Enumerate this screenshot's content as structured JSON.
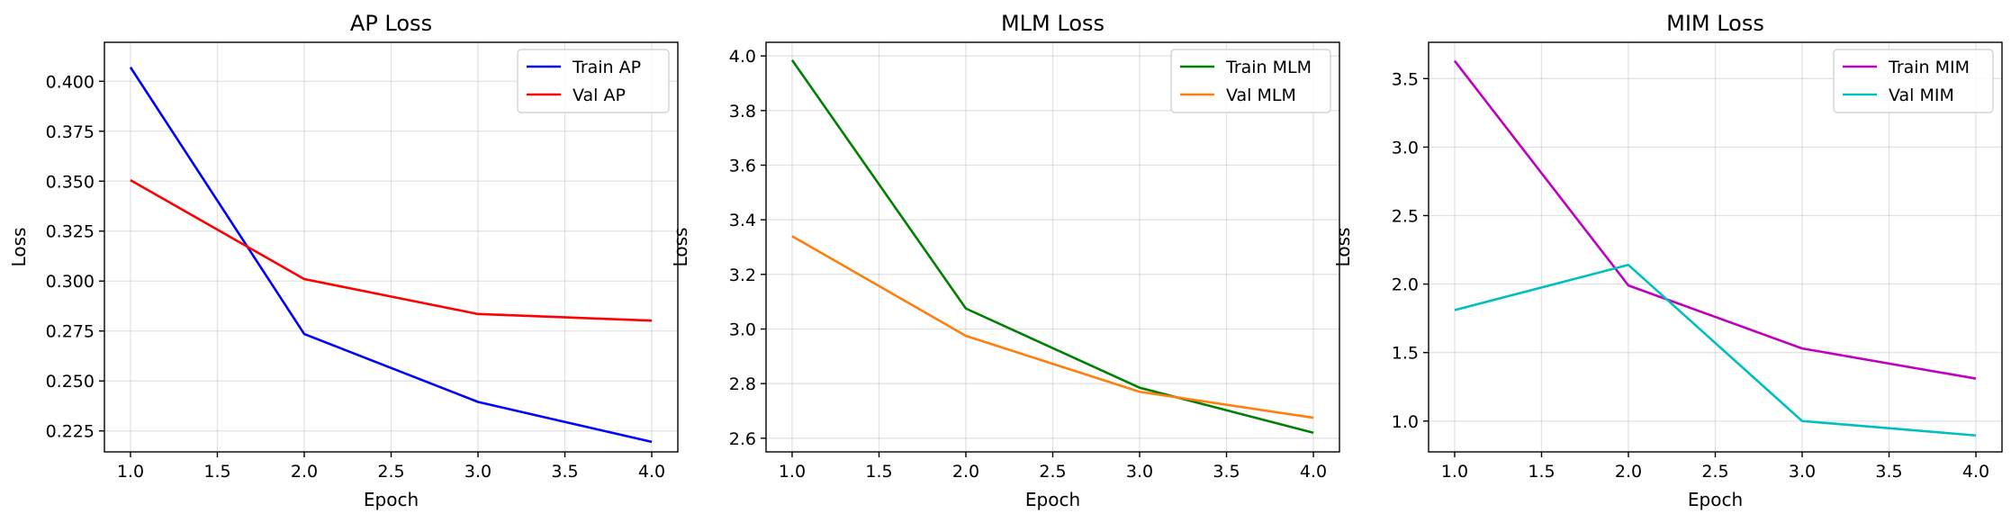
{
  "chart_data": [
    {
      "type": "line",
      "title": "AP Loss",
      "xlabel": "Epoch",
      "ylabel": "Loss",
      "xlim": [
        0.85,
        4.15
      ],
      "ylim": [
        0.2145,
        0.4195
      ],
      "xticks": [
        1.0,
        1.5,
        2.0,
        2.5,
        3.0,
        3.5,
        4.0
      ],
      "xtick_labels": [
        "1.0",
        "1.5",
        "2.0",
        "2.5",
        "3.0",
        "3.5",
        "4.0"
      ],
      "yticks": [
        0.225,
        0.25,
        0.275,
        0.3,
        0.325,
        0.35,
        0.375,
        0.4
      ],
      "ytick_labels": [
        "0.225",
        "0.250",
        "0.275",
        "0.300",
        "0.325",
        "0.350",
        "0.375",
        "0.400"
      ],
      "grid": true,
      "legend_position": "top-right",
      "x": [
        1,
        2,
        3,
        4
      ],
      "series": [
        {
          "name": "Train AP",
          "color": "#0000ff",
          "values": [
            0.407,
            0.2735,
            0.2395,
            0.2195
          ]
        },
        {
          "name": "Val AP",
          "color": "#ff0000",
          "values": [
            0.3505,
            0.301,
            0.2835,
            0.2802
          ]
        }
      ]
    },
    {
      "type": "line",
      "title": "MLM Loss",
      "xlabel": "Epoch",
      "ylabel": "Loss",
      "xlim": [
        0.85,
        4.15
      ],
      "ylim": [
        2.55,
        4.05
      ],
      "xticks": [
        1.0,
        1.5,
        2.0,
        2.5,
        3.0,
        3.5,
        4.0
      ],
      "xtick_labels": [
        "1.0",
        "1.5",
        "2.0",
        "2.5",
        "3.0",
        "3.5",
        "4.0"
      ],
      "yticks": [
        2.6,
        2.8,
        3.0,
        3.2,
        3.4,
        3.6,
        3.8,
        4.0
      ],
      "ytick_labels": [
        "2.6",
        "2.8",
        "3.0",
        "3.2",
        "3.4",
        "3.6",
        "3.8",
        "4.0"
      ],
      "grid": true,
      "legend_position": "top-right",
      "x": [
        1,
        2,
        3,
        4
      ],
      "series": [
        {
          "name": "Train MLM",
          "color": "#008000",
          "values": [
            3.985,
            3.075,
            2.785,
            2.62
          ]
        },
        {
          "name": "Val MLM",
          "color": "#ff7f0e",
          "values": [
            3.34,
            2.975,
            2.77,
            2.675
          ]
        }
      ]
    },
    {
      "type": "line",
      "title": "MIM Loss",
      "xlabel": "Epoch",
      "ylabel": "Loss",
      "xlim": [
        0.85,
        4.15
      ],
      "ylim": [
        0.775,
        3.765
      ],
      "xticks": [
        1.0,
        1.5,
        2.0,
        2.5,
        3.0,
        3.5,
        4.0
      ],
      "xtick_labels": [
        "1.0",
        "1.5",
        "2.0",
        "2.5",
        "3.0",
        "3.5",
        "4.0"
      ],
      "yticks": [
        1.0,
        1.5,
        2.0,
        2.5,
        3.0,
        3.5
      ],
      "ytick_labels": [
        "1.0",
        "1.5",
        "2.0",
        "2.5",
        "3.0",
        "3.5"
      ],
      "grid": true,
      "legend_position": "top-right",
      "x": [
        1,
        2,
        3,
        4
      ],
      "series": [
        {
          "name": "Train MIM",
          "color": "#bf00bf",
          "values": [
            3.63,
            1.99,
            1.53,
            1.31
          ]
        },
        {
          "name": "Val MIM",
          "color": "#00bfbf",
          "values": [
            1.81,
            2.14,
            1.0,
            0.895
          ]
        }
      ]
    }
  ]
}
